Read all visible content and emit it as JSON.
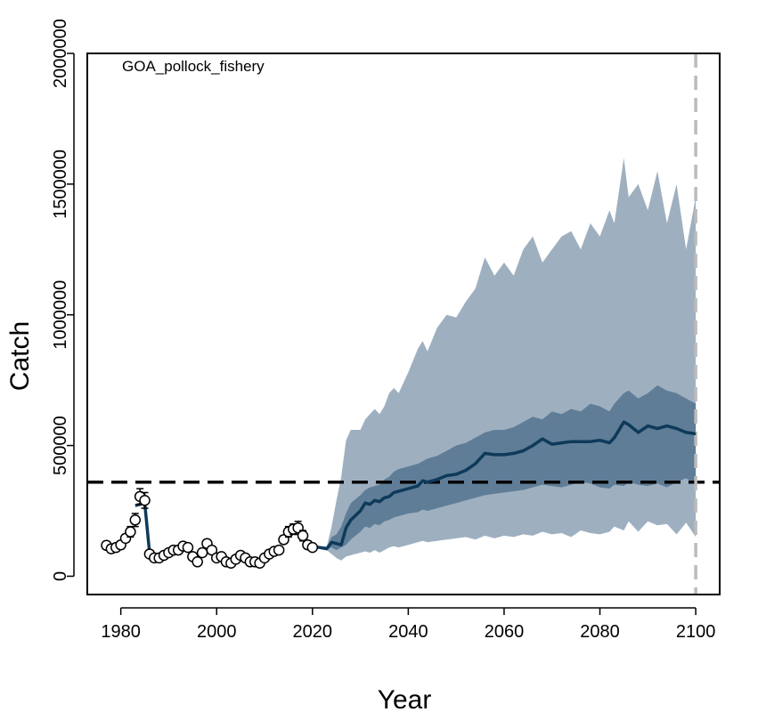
{
  "chart_data": {
    "type": "line",
    "title": "GOA_pollock_fishery",
    "xlabel": "Year",
    "ylabel": "Catch",
    "xlim": [
      1973,
      2105
    ],
    "ylim": [
      -70000,
      2000000
    ],
    "x_ticks": [
      1980,
      2000,
      2020,
      2040,
      2060,
      2080,
      2100
    ],
    "x_tick_labels": [
      "1980",
      "2000",
      "2020",
      "2040",
      "2060",
      "2080",
      "2100"
    ],
    "y_ticks": [
      0,
      500000,
      1000000,
      1500000,
      2000000
    ],
    "y_tick_labels": [
      "0",
      "500000",
      "1000000",
      "1500000",
      "2000000"
    ],
    "reference_line_y": 360000,
    "end_year_line_x": 2100,
    "colors": {
      "observed_point": "#ffffff",
      "median_line": "#0e3a5a",
      "outer_band": "#9eb0c0",
      "inner_band": "#5f7d96",
      "reference_line": "#000000",
      "end_year_line": "#bbbbbb"
    },
    "observed": {
      "name": "",
      "x": [
        1977,
        1978,
        1979,
        1980,
        1981,
        1982,
        1983,
        1984,
        1985,
        1986,
        1987,
        1988,
        1989,
        1990,
        1991,
        1992,
        1993,
        1994,
        1995,
        1996,
        1997,
        1998,
        1999,
        2000,
        2001,
        2002,
        2003,
        2004,
        2005,
        2006,
        2007,
        2008,
        2009,
        2010,
        2011,
        2012,
        2013,
        2014,
        2015,
        2016,
        2017,
        2018,
        2019,
        2020
      ],
      "y": [
        118000,
        105000,
        110000,
        120000,
        145000,
        170000,
        215000,
        305000,
        290000,
        85000,
        70000,
        70000,
        80000,
        90000,
        100000,
        100000,
        115000,
        110000,
        75000,
        55000,
        90000,
        125000,
        100000,
        70000,
        75000,
        55000,
        50000,
        65000,
        80000,
        70000,
        55000,
        55000,
        50000,
        70000,
        85000,
        95000,
        100000,
        140000,
        170000,
        180000,
        185000,
        155000,
        120000,
        110000
      ],
      "err": [
        15000,
        15000,
        15000,
        15000,
        15000,
        20000,
        25000,
        30000,
        30000,
        12000,
        10000,
        10000,
        10000,
        10000,
        10000,
        10000,
        10000,
        10000,
        10000,
        10000,
        10000,
        15000,
        10000,
        10000,
        10000,
        8000,
        8000,
        8000,
        10000,
        10000,
        8000,
        8000,
        8000,
        10000,
        10000,
        10000,
        10000,
        15000,
        20000,
        20000,
        25000,
        20000,
        15000,
        12000
      ]
    },
    "fit": {
      "x": [
        1983,
        1984,
        1985,
        1986
      ],
      "y": [
        270000,
        275000,
        280000,
        90000
      ]
    },
    "projection": {
      "x": [
        2020,
        2023,
        2024,
        2025,
        2026,
        2027,
        2028,
        2030,
        2031,
        2032,
        2033,
        2034,
        2035,
        2036,
        2037,
        2038,
        2040,
        2042,
        2043,
        2044,
        2046,
        2048,
        2050,
        2052,
        2054,
        2056,
        2058,
        2060,
        2062,
        2064,
        2066,
        2068,
        2070,
        2072,
        2074,
        2076,
        2078,
        2080,
        2082,
        2083,
        2085,
        2086,
        2088,
        2090,
        2092,
        2094,
        2096,
        2098,
        2100
      ],
      "median": [
        115000,
        105000,
        130000,
        125000,
        120000,
        185000,
        215000,
        250000,
        280000,
        275000,
        290000,
        285000,
        300000,
        305000,
        320000,
        325000,
        335000,
        345000,
        365000,
        360000,
        370000,
        385000,
        390000,
        405000,
        430000,
        470000,
        465000,
        465000,
        470000,
        480000,
        500000,
        525000,
        505000,
        510000,
        515000,
        515000,
        515000,
        520000,
        510000,
        530000,
        590000,
        580000,
        550000,
        575000,
        565000,
        575000,
        565000,
        550000,
        545000
      ],
      "p25": [
        115000,
        105000,
        110000,
        100000,
        110000,
        120000,
        140000,
        170000,
        190000,
        185000,
        200000,
        195000,
        210000,
        215000,
        225000,
        230000,
        240000,
        245000,
        255000,
        250000,
        260000,
        270000,
        280000,
        290000,
        300000,
        310000,
        315000,
        320000,
        325000,
        330000,
        340000,
        350000,
        345000,
        340000,
        350000,
        360000,
        355000,
        340000,
        335000,
        350000,
        345000,
        360000,
        350000,
        345000,
        355000,
        340000,
        360000,
        375000,
        350000
      ],
      "p75": [
        115000,
        110000,
        150000,
        160000,
        190000,
        240000,
        280000,
        310000,
        330000,
        340000,
        345000,
        350000,
        370000,
        380000,
        400000,
        410000,
        420000,
        430000,
        440000,
        450000,
        460000,
        480000,
        500000,
        510000,
        530000,
        550000,
        560000,
        560000,
        570000,
        590000,
        610000,
        600000,
        630000,
        620000,
        640000,
        630000,
        660000,
        650000,
        630000,
        660000,
        700000,
        710000,
        680000,
        700000,
        730000,
        710000,
        700000,
        680000,
        660000
      ],
      "p5": [
        115000,
        100000,
        85000,
        70000,
        60000,
        75000,
        80000,
        90000,
        95000,
        90000,
        100000,
        90000,
        100000,
        110000,
        115000,
        110000,
        120000,
        130000,
        135000,
        130000,
        135000,
        140000,
        145000,
        150000,
        140000,
        155000,
        145000,
        155000,
        150000,
        160000,
        155000,
        170000,
        160000,
        165000,
        150000,
        175000,
        165000,
        160000,
        170000,
        190000,
        175000,
        210000,
        170000,
        210000,
        195000,
        200000,
        160000,
        205000,
        150000
      ],
      "p95": [
        115000,
        115000,
        190000,
        290000,
        380000,
        520000,
        560000,
        560000,
        600000,
        620000,
        640000,
        620000,
        650000,
        700000,
        720000,
        700000,
        780000,
        870000,
        900000,
        860000,
        950000,
        1000000,
        990000,
        1050000,
        1100000,
        1220000,
        1150000,
        1200000,
        1150000,
        1250000,
        1300000,
        1200000,
        1250000,
        1300000,
        1320000,
        1250000,
        1350000,
        1300000,
        1400000,
        1350000,
        1600000,
        1450000,
        1500000,
        1400000,
        1550000,
        1350000,
        1500000,
        1250000,
        1450000
      ]
    }
  }
}
